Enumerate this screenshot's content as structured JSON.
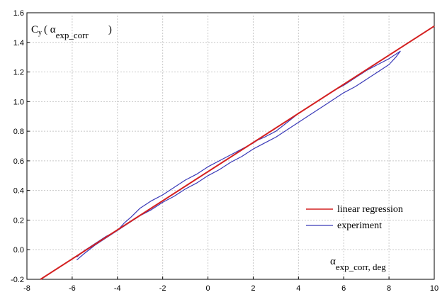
{
  "chart_data": {
    "type": "line",
    "title": "",
    "xlabel": "α exp_corr, deg",
    "ylabel": "Cy ( α exp_corr )",
    "ylabel_main": "C",
    "ylabel_sub": "y",
    "ylabel_open": "( α",
    "ylabel_alpha_sub": "exp_corr",
    "ylabel_close": ")",
    "xlabel_alpha": "α",
    "xlabel_sub": "exp_corr, deg",
    "xlim": [
      -8,
      10
    ],
    "ylim": [
      -0.2,
      1.6
    ],
    "xticks": [
      -8,
      -6,
      -4,
      -2,
      0,
      2,
      4,
      6,
      8,
      10
    ],
    "yticks": [
      -0.2,
      0.0,
      0.2,
      0.4,
      0.6,
      0.8,
      1.0,
      1.2,
      1.4,
      1.6
    ],
    "xtick_labels": [
      "-8",
      "-6",
      "-4",
      "-2",
      "0",
      "2",
      "4",
      "6",
      "8",
      "10"
    ],
    "ytick_labels": [
      "-0.2",
      "0.0",
      "0.2",
      "0.4",
      "0.6",
      "0.8",
      "1.0",
      "1.2",
      "1.4",
      "1.6"
    ],
    "grid": true,
    "legend_position": "lower-right",
    "series": [
      {
        "name": "linear regression",
        "color": "#d42020",
        "x": [
          -7.4,
          10.0
        ],
        "y": [
          -0.2,
          1.51
        ]
      },
      {
        "name": "experiment",
        "color": "#3a3ab8",
        "x": [
          -5.8,
          -5.5,
          -5.0,
          -4.5,
          -4.0,
          -3.7,
          -3.4,
          -3.0,
          -2.5,
          -2.0,
          -1.5,
          -1.0,
          -0.5,
          0.0,
          0.5,
          1.0,
          1.5,
          2.0,
          2.2,
          2.5,
          3.0,
          3.5,
          4.0,
          4.5,
          5.0,
          5.5,
          6.0,
          6.5,
          7.0,
          7.5,
          8.0,
          8.3,
          8.5,
          8.3,
          8.0,
          7.5,
          7.0,
          6.5,
          6.0,
          5.5,
          5.0,
          4.5,
          4.0,
          3.5,
          3.0,
          2.5,
          2.0,
          1.5,
          1.0,
          0.5,
          0.0,
          -0.5,
          -1.0,
          -1.5,
          -2.0,
          -2.5,
          -3.0,
          -3.5,
          -4.0,
          -4.5,
          -5.0,
          -5.5,
          -5.8
        ],
        "y": [
          -0.07,
          -0.03,
          0.03,
          0.08,
          0.13,
          0.18,
          0.22,
          0.28,
          0.33,
          0.37,
          0.42,
          0.47,
          0.51,
          0.56,
          0.6,
          0.64,
          0.68,
          0.72,
          0.74,
          0.76,
          0.8,
          0.86,
          0.92,
          0.97,
          1.02,
          1.07,
          1.11,
          1.16,
          1.21,
          1.25,
          1.29,
          1.32,
          1.34,
          1.3,
          1.25,
          1.2,
          1.15,
          1.1,
          1.06,
          1.01,
          0.96,
          0.91,
          0.86,
          0.81,
          0.76,
          0.72,
          0.68,
          0.63,
          0.59,
          0.54,
          0.5,
          0.45,
          0.41,
          0.36,
          0.32,
          0.27,
          0.23,
          0.18,
          0.13,
          0.09,
          0.04,
          -0.01,
          -0.05
        ]
      }
    ]
  }
}
